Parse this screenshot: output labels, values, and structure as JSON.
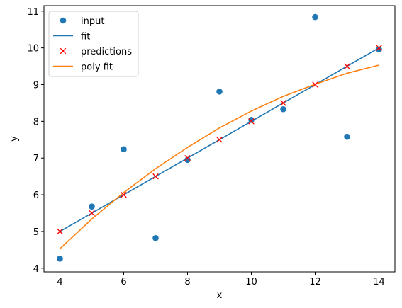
{
  "chart_data": {
    "type": "scatter",
    "xlabel": "x",
    "ylabel": "y",
    "xlim": [
      3.5,
      14.5
    ],
    "ylim": [
      3.9,
      11.15
    ],
    "xticks": [
      4,
      6,
      8,
      10,
      12,
      14
    ],
    "yticks": [
      4,
      5,
      6,
      7,
      8,
      9,
      10,
      11
    ],
    "grid": false,
    "legend_position": "upper-left",
    "series": [
      {
        "name": "input",
        "kind": "scatter-circle",
        "color": "#1f77b4",
        "x": [
          4,
          5,
          6,
          7,
          8,
          9,
          10,
          11,
          12,
          13,
          14
        ],
        "y": [
          4.26,
          5.68,
          7.24,
          4.82,
          6.95,
          8.81,
          8.04,
          8.33,
          10.84,
          7.58,
          9.96
        ]
      },
      {
        "name": "fit",
        "kind": "line",
        "color": "#1f77b4",
        "x": [
          4,
          14
        ],
        "y": [
          5.0,
          10.0
        ]
      },
      {
        "name": "predictions",
        "kind": "scatter-x",
        "color": "#ff0000",
        "x": [
          4,
          5,
          6,
          7,
          8,
          9,
          10,
          11,
          12,
          13,
          14
        ],
        "y": [
          5.0,
          5.5,
          6.0,
          6.5,
          7.0,
          7.5,
          8.0,
          8.5,
          9.0,
          9.5,
          10.0
        ]
      },
      {
        "name": "poly fit",
        "kind": "line",
        "color": "#ff7f0e",
        "x": [
          4,
          5,
          6,
          7,
          8,
          9,
          10,
          11,
          12,
          13,
          14
        ],
        "y": [
          4.53,
          5.34,
          6.06,
          6.71,
          7.29,
          7.82,
          8.28,
          8.68,
          9.01,
          9.31,
          9.53
        ]
      }
    ]
  }
}
